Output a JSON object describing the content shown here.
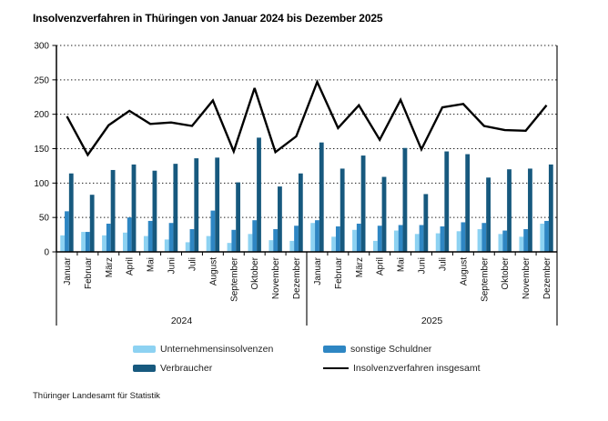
{
  "title": "Insolvenzverfahren in Thüringen von Januar 2024 bis Dezember 2025",
  "source": "Thüringer Landesamt für Statistik",
  "legend": {
    "items": [
      {
        "label": "Unternehmensinsolvenzen",
        "swatch": "box",
        "color": "#8DD2F2"
      },
      {
        "label": "sonstige Schuldner",
        "swatch": "box",
        "color": "#2E86C3"
      },
      {
        "label": "Verbraucher",
        "swatch": "box",
        "color": "#17597E"
      },
      {
        "label": "Insolvenzverfahren insgesamt",
        "swatch": "line",
        "color": "#000000"
      }
    ]
  },
  "chart_data": {
    "type": "bar",
    "subtype": "grouped-bars-with-total-line",
    "title": "Insolvenzverfahren in Thüringen von Januar 2024 bis Dezember 2025",
    "xlabel": "",
    "ylabel": "",
    "ylim": [
      0,
      300
    ],
    "yticks": [
      0,
      50,
      100,
      150,
      200,
      250,
      300
    ],
    "grid": "dotted-horizontal",
    "legend_position": "bottom",
    "year_groups": [
      {
        "label": "2024",
        "start": 0,
        "end": 11
      },
      {
        "label": "2025",
        "start": 12,
        "end": 23
      }
    ],
    "categories": [
      "Januar",
      "Februar",
      "März",
      "April",
      "Mai",
      "Juni",
      "Juli",
      "August",
      "September",
      "Oktober",
      "November",
      "Dezember",
      "Januar",
      "Februar",
      "März",
      "April",
      "Mai",
      "Juni",
      "Juli",
      "August",
      "September",
      "Oktober",
      "November",
      "Dezember"
    ],
    "series": [
      {
        "name": "Unternehmensinsolvenzen",
        "kind": "bar",
        "color": "#8DD2F2",
        "values": [
          24,
          29,
          24,
          28,
          23,
          18,
          14,
          23,
          13,
          26,
          17,
          16,
          42,
          22,
          32,
          16,
          31,
          26,
          27,
          30,
          33,
          26,
          22,
          41
        ]
      },
      {
        "name": "sonstige Schuldner",
        "kind": "bar",
        "color": "#2E86C3",
        "values": [
          59,
          29,
          41,
          50,
          45,
          42,
          33,
          60,
          32,
          46,
          33,
          38,
          46,
          37,
          41,
          38,
          39,
          39,
          37,
          43,
          42,
          31,
          33,
          45
        ]
      },
      {
        "name": "Verbraucher",
        "kind": "bar",
        "color": "#17597E",
        "values": [
          114,
          83,
          119,
          127,
          118,
          128,
          136,
          137,
          101,
          166,
          95,
          114,
          159,
          121,
          140,
          109,
          151,
          84,
          146,
          142,
          108,
          120,
          121,
          127
        ]
      },
      {
        "name": "Insolvenzverfahren insgesamt",
        "kind": "line",
        "color": "#000000",
        "values": [
          197,
          141,
          184,
          205,
          186,
          188,
          183,
          220,
          146,
          238,
          145,
          168,
          247,
          180,
          213,
          163,
          221,
          149,
          210,
          215,
          183,
          177,
          176,
          213
        ]
      }
    ]
  }
}
